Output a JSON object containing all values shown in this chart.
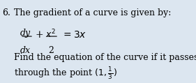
{
  "background_color": "#dce6f0",
  "number": "6.",
  "line1": "The gradient of a curve is given by:",
  "line2_left": "dy",
  "line2_bar_left": "dx",
  "line2_plus": "+",
  "line2_frac_num": "x²",
  "line2_frac_den": "2",
  "line2_right": "=3x",
  "line3": "Find the equation of the curve if it passes",
  "line4": "through the point (1, ¹⁄₃)",
  "font_size_main": 9,
  "font_size_math": 10,
  "text_color": "#000000"
}
